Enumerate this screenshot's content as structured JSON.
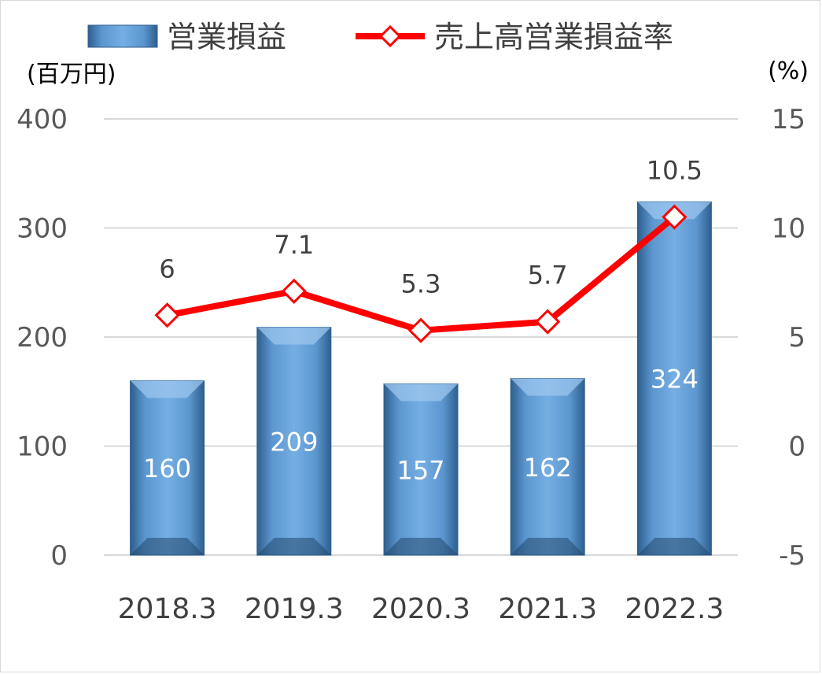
{
  "chart_data": {
    "type": "bar",
    "categories": [
      "2018.3",
      "2019.3",
      "2020.3",
      "2021.3",
      "2022.3"
    ],
    "series": [
      {
        "name": "営業損益",
        "type": "bar",
        "axis": "left",
        "values": [
          160,
          209,
          157,
          162,
          324
        ],
        "color": "#5b9bd5"
      },
      {
        "name": "売上高営業損益率",
        "type": "line",
        "axis": "right",
        "values": [
          6,
          7.1,
          5.3,
          5.7,
          10.5
        ],
        "color": "#ff0000"
      }
    ],
    "y_left": {
      "unit": "(百万円)",
      "ylim": [
        0,
        400
      ],
      "ticks": [
        "0",
        "100",
        "200",
        "300",
        "400"
      ]
    },
    "y_right": {
      "unit": "(%)",
      "ylim": [
        -5,
        15
      ],
      "ticks": [
        "-5",
        "0",
        "5",
        "10",
        "15"
      ]
    },
    "bar_labels": [
      "160",
      "209",
      "157",
      "162",
      "324"
    ],
    "line_labels": [
      "6",
      "7.1",
      "5.3",
      "5.7",
      "10.5"
    ],
    "grid": true,
    "legend": "top"
  }
}
